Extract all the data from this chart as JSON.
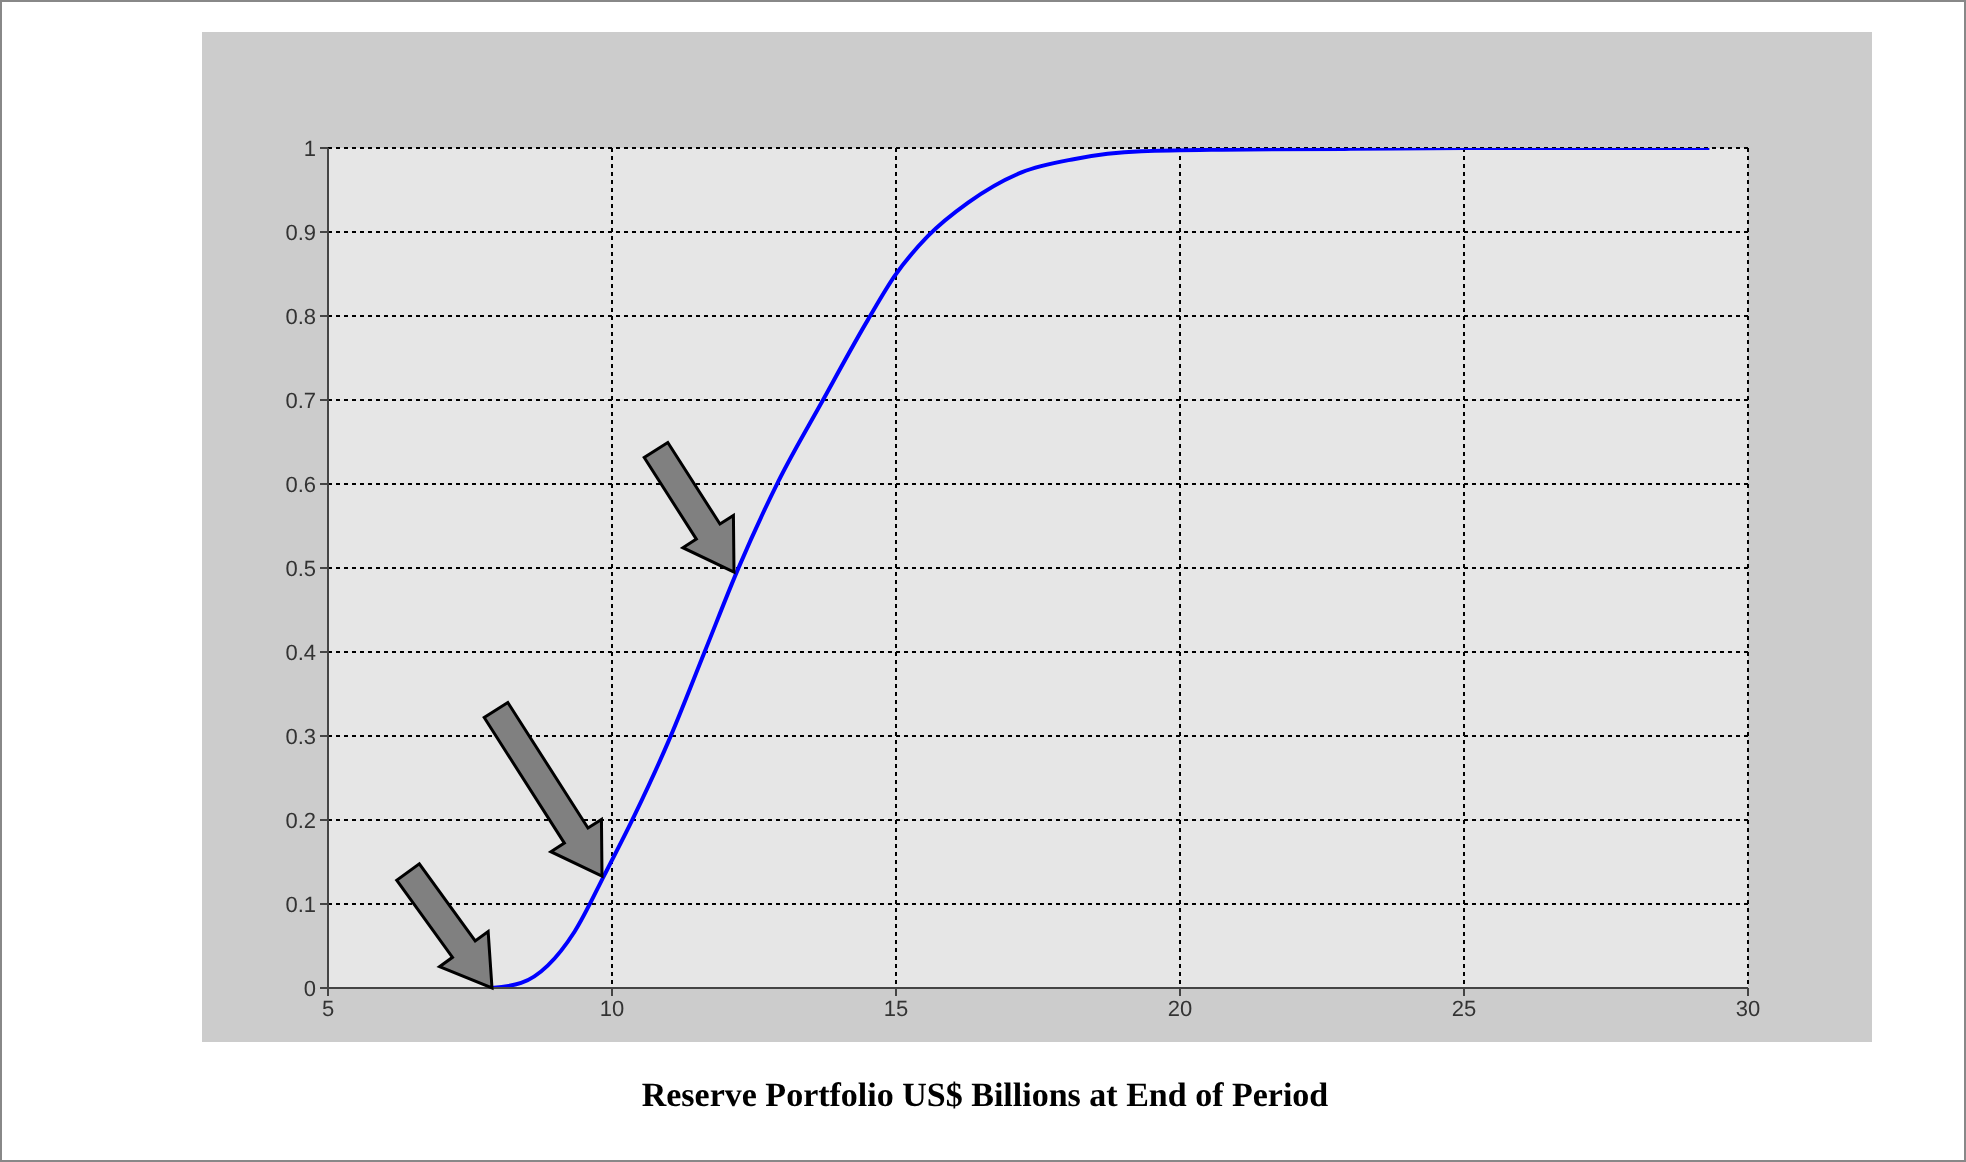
{
  "chart_data": {
    "type": "line",
    "xlabel": "Reserve Portfolio US$ Billions at End of Period",
    "x": [
      7.88,
      8.4,
      9.34,
      9.87,
      10.4,
      10.99,
      11.63,
      12.22,
      12.92,
      13.69,
      14.51,
      14.98,
      15.56,
      16.27,
      17.21,
      18.15,
      19.32,
      20.73,
      23,
      25,
      29.32
    ],
    "series": [
      {
        "color": "#0000ff",
        "values": [
          0,
          0.006,
          0.067,
          0.135,
          0.206,
          0.293,
          0.4,
          0.499,
          0.602,
          0.697,
          0.796,
          0.848,
          0.895,
          0.935,
          0.971,
          0.987,
          0.996,
          0.998,
          0.999,
          1,
          1
        ]
      }
    ],
    "xlim": [
      5,
      30
    ],
    "xticks": [
      5,
      10,
      15,
      20,
      25,
      30
    ],
    "ylim": [
      0,
      1
    ],
    "yticks": [
      0,
      0.1,
      0.2,
      0.3,
      0.4,
      0.5,
      0.6,
      0.7,
      0.8,
      0.9,
      1
    ],
    "grid": true
  }
}
